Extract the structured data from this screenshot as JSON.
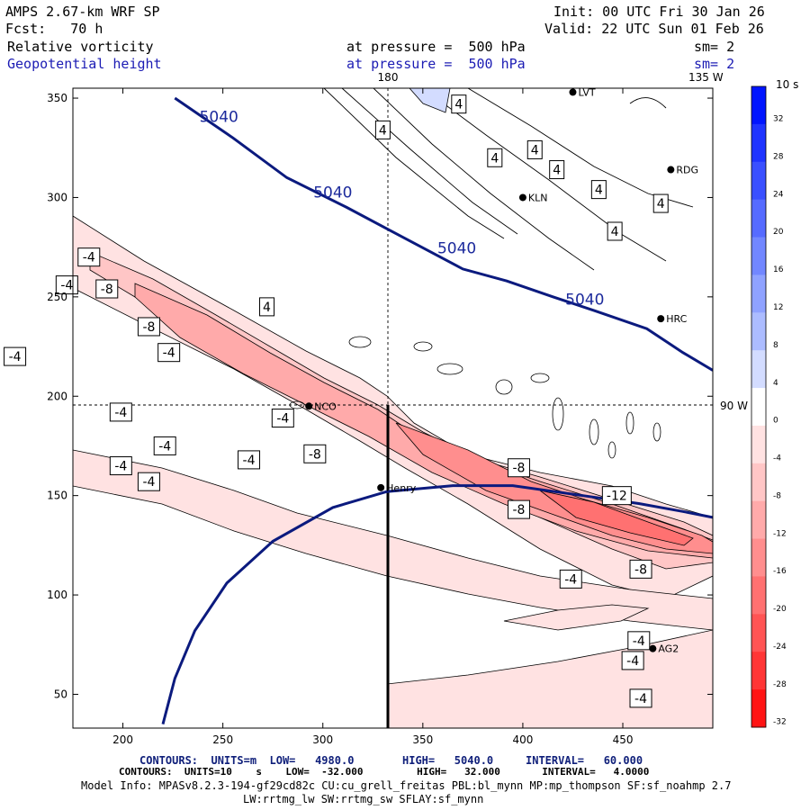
{
  "header": {
    "model": "AMPS 2.67-km WRF SP",
    "init": "Init: 00 UTC Fri 30 Jan 26",
    "fcst": "Fcst:   70 h",
    "valid": "Valid: 22 UTC Sun 01 Feb 26",
    "field1": "Relative vorticity",
    "field1_level": "at pressure =  500 hPa",
    "field1_sm": "sm= 2",
    "field2": "Geopotential height",
    "field2_level": "at pressure =  500 hPa",
    "field2_sm": "sm= 2"
  },
  "map_labels": {
    "lon_top": "180",
    "lon_right_top": "135 W",
    "lat_right": "90 W",
    "stations": [
      "LVT",
      "RDG",
      "KLN",
      "HRC",
      "NCO",
      "Henry",
      "AG2"
    ]
  },
  "footer": {
    "line1a": "CONTOURS:  UNITS=m  LOW=   4980.0",
    "line1b": "HIGH=   5040.0",
    "line1c": "INTERVAL=   60.000",
    "line2": "CONTOURS:  UNITS=10    s    LOW=  -32.000         HIGH=   32.000       INTERVAL=   4.0000",
    "line3": "Model Info: MPASv8.2.3-194-gf29cd82c CU:cu_grell_freitas PBL:bl_mynn MP:mp_thompson SF:sf_noahmp 2.7",
    "line4": "LW:rrtmg_lw SW:rrtmg_sw SFLAY:sf_mynn"
  },
  "colorbar": {
    "title": "10  s",
    "levels": [
      "32",
      "28",
      "24",
      "20",
      "16",
      "12",
      "8",
      "4",
      "0",
      "-4",
      "-8",
      "-12",
      "-16",
      "-20",
      "-24",
      "-28",
      "-32"
    ],
    "colors": [
      "#0015ff",
      "#1f34ff",
      "#3a50ff",
      "#566bff",
      "#7287ff",
      "#8fa2ff",
      "#acbcff",
      "#d3dcff",
      "#ffffff",
      "#ffe2e2",
      "#ffc6c6",
      "#ffaaaa",
      "#ff8e8e",
      "#ff7171",
      "#ff5454",
      "#ff3636",
      "#ff1414"
    ]
  },
  "chart_data": {
    "type": "contour-map",
    "title": "AMPS 2.67-km WRF SP",
    "xlim": [
      175,
      495
    ],
    "ylim": [
      33,
      355
    ],
    "x_ticks": [
      200,
      250,
      300,
      350,
      400,
      450
    ],
    "y_ticks": [
      50,
      100,
      150,
      200,
      250,
      300,
      350
    ],
    "height_contours": [
      {
        "name": "5040 m contour",
        "label": "5040",
        "points": [
          [
            226,
            350
          ],
          [
            255,
            330
          ],
          [
            282,
            310
          ],
          [
            312,
            295
          ],
          [
            340,
            280
          ],
          [
            370,
            264
          ],
          [
            392,
            258
          ],
          [
            415,
            250
          ],
          [
            436,
            243
          ],
          [
            462,
            234
          ],
          [
            480,
            222
          ],
          [
            495,
            213
          ]
        ]
      },
      {
        "name": "4980 m contour",
        "label": "",
        "points": [
          [
            220,
            35
          ],
          [
            226,
            58
          ],
          [
            236,
            82
          ],
          [
            252,
            106
          ],
          [
            275,
            127
          ],
          [
            305,
            144
          ],
          [
            332,
            152
          ],
          [
            365,
            155
          ],
          [
            395,
            155
          ],
          [
            430,
            150
          ],
          [
            458,
            146
          ],
          [
            480,
            142
          ],
          [
            495,
            139
          ]
        ]
      }
    ],
    "vorticity_labels": [
      {
        "value": "4",
        "x": 368,
        "y": 347
      },
      {
        "value": "4",
        "x": 330,
        "y": 334
      },
      {
        "value": "4",
        "x": 386,
        "y": 320
      },
      {
        "value": "4",
        "x": 406,
        "y": 324
      },
      {
        "value": "4",
        "x": 417,
        "y": 314
      },
      {
        "value": "4",
        "x": 438,
        "y": 304
      },
      {
        "value": "4",
        "x": 469,
        "y": 297
      },
      {
        "value": "4",
        "x": 446,
        "y": 283
      },
      {
        "value": "4",
        "x": 272,
        "y": 245
      },
      {
        "value": "-4",
        "x": 183,
        "y": 270
      },
      {
        "value": "-4",
        "x": 172,
        "y": 256
      },
      {
        "value": "-8",
        "x": 192,
        "y": 254
      },
      {
        "value": "-8",
        "x": 213,
        "y": 235
      },
      {
        "value": "-4",
        "x": 223,
        "y": 222
      },
      {
        "value": "-4",
        "x": 146,
        "y": 220
      },
      {
        "value": "-4",
        "x": 199,
        "y": 192
      },
      {
        "value": "-4",
        "x": 280,
        "y": 189
      },
      {
        "value": "-8",
        "x": 296,
        "y": 171
      },
      {
        "value": "-4",
        "x": 221,
        "y": 175
      },
      {
        "value": "-4",
        "x": 263,
        "y": 168
      },
      {
        "value": "-4",
        "x": 199,
        "y": 165
      },
      {
        "value": "-4",
        "x": 213,
        "y": 157
      },
      {
        "value": "-8",
        "x": 398,
        "y": 164
      },
      {
        "value": "-12",
        "x": 447,
        "y": 150
      },
      {
        "value": "-8",
        "x": 398,
        "y": 143
      },
      {
        "value": "-8",
        "x": 459,
        "y": 113
      },
      {
        "value": "-4",
        "x": 424,
        "y": 108
      },
      {
        "value": "-4",
        "x": 458,
        "y": 77
      },
      {
        "value": "-4",
        "x": 455,
        "y": 67
      },
      {
        "value": "-4",
        "x": 459,
        "y": 48
      }
    ]
  }
}
